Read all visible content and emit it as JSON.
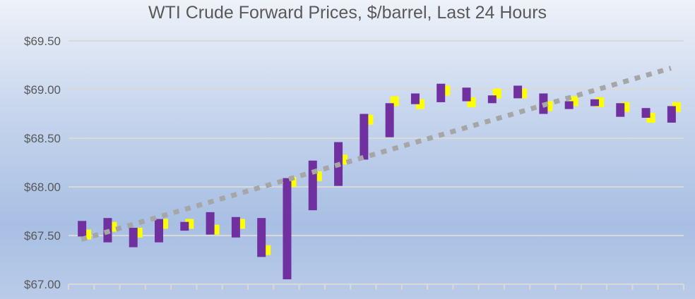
{
  "chart_data": {
    "type": "bar",
    "title": "WTI Crude Forward Prices, $/barrel, Last 24 Hours",
    "xlabel": "",
    "ylabel": "",
    "ylim": [
      67.0,
      69.5
    ],
    "yticks": [
      "$67.00",
      "$67.50",
      "$68.00",
      "$68.50",
      "$69.00",
      "$69.50"
    ],
    "ytick_values": [
      67.0,
      67.5,
      68.0,
      68.5,
      69.0,
      69.5
    ],
    "grid": true,
    "legend": "none",
    "bar_ranges": [
      [
        67.49,
        67.65
      ],
      [
        67.43,
        67.68
      ],
      [
        67.38,
        67.58
      ],
      [
        67.43,
        67.67
      ],
      [
        67.55,
        67.64
      ],
      [
        67.51,
        67.74
      ],
      [
        67.48,
        67.69
      ],
      [
        67.28,
        67.68
      ],
      [
        67.05,
        68.09
      ],
      [
        67.76,
        68.27
      ],
      [
        68.01,
        68.46
      ],
      [
        68.28,
        68.75
      ],
      [
        68.51,
        68.86
      ],
      [
        68.85,
        68.96
      ],
      [
        68.87,
        69.06
      ],
      [
        68.88,
        69.02
      ],
      [
        68.86,
        68.94
      ],
      [
        68.91,
        69.04
      ],
      [
        68.75,
        68.96
      ],
      [
        68.8,
        68.88
      ],
      [
        68.83,
        68.9
      ],
      [
        68.72,
        68.86
      ],
      [
        68.71,
        68.81
      ],
      [
        68.66,
        68.83
      ]
    ],
    "marker_values": [
      67.51,
      67.59,
      67.53,
      67.62,
      67.62,
      67.56,
      67.62,
      67.35,
      68.05,
      68.11,
      68.28,
      68.69,
      68.88,
      68.85,
      68.99,
      68.87,
      68.96,
      68.96,
      68.83,
      68.88,
      68.87,
      68.82,
      68.71,
      68.82
    ],
    "trendline": {
      "type": "linear",
      "start": 67.46,
      "end": 69.22
    },
    "colors": {
      "bar": "#7030a0",
      "marker": "#ffff00",
      "trendline": "#a6a6a6",
      "grid": "#d9d9d9",
      "text": "#595959"
    }
  }
}
